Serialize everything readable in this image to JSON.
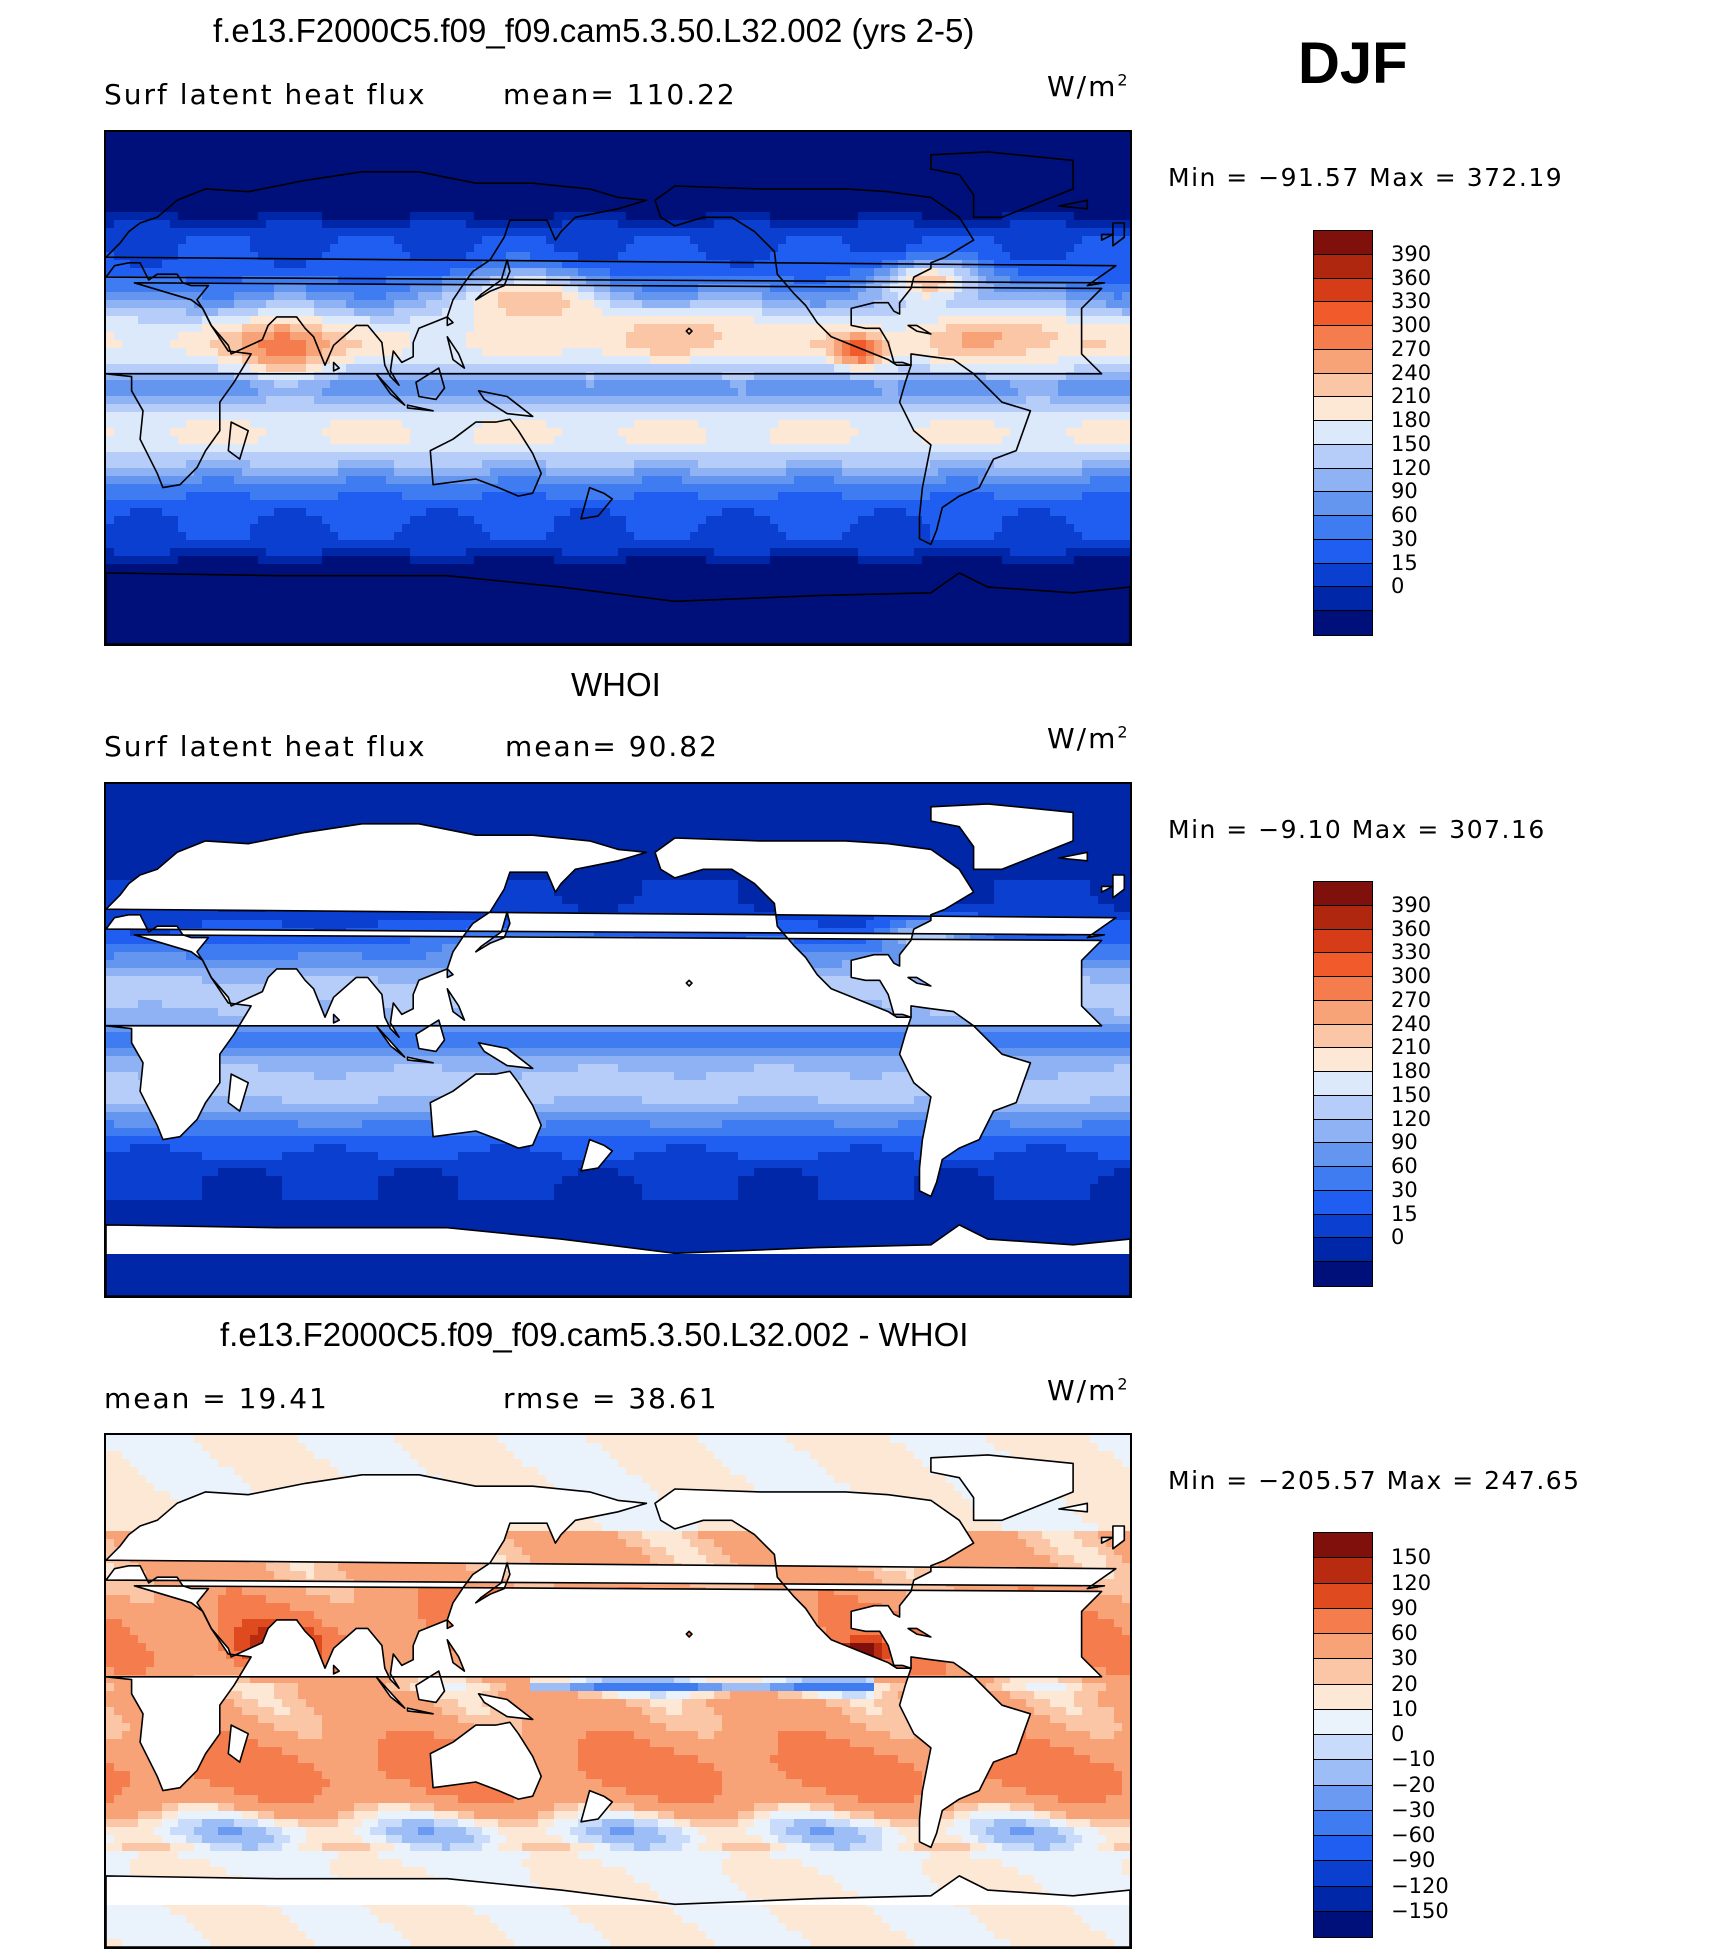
{
  "colors": {
    "seq": [
      "#00107a",
      "#0027a8",
      "#0a3fd0",
      "#1f5ef0",
      "#3f7cf2",
      "#6496f0",
      "#8fb2f5",
      "#b6cdf9",
      "#dce9fb",
      "#fde8d6",
      "#fbc6a6",
      "#f8a277",
      "#f57d4d",
      "#f15a2b",
      "#d63c17",
      "#b0270f",
      "#80100b"
    ],
    "div": [
      "#00107a",
      "#0027a8",
      "#0a3fd0",
      "#1f5ef0",
      "#3f7cf2",
      "#6a9af2",
      "#9dbdf6",
      "#c8dbfb",
      "#eaf2fc",
      "#fde8d6",
      "#fbc6a6",
      "#f8a277",
      "#f57d4d",
      "#e04a1f",
      "#b92b10",
      "#80100b"
    ]
  },
  "header": {
    "djf": "DJF"
  },
  "chart_data": [
    {
      "type": "heatmap",
      "title": "f.e13.F2000C5.f09_f09.cam5.3.50.L32.002 (yrs 2-5)",
      "left_label": "Surf  latent  heat  flux",
      "center_label": "mean=  110.22",
      "units": "W/m",
      "units_sup": "2",
      "minmax": "Min  =  −91.57  Max  =  372.19",
      "min": -91.57,
      "max": 372.19,
      "mean": 110.22,
      "colorbar_ticks": [
        "390",
        "360",
        "330",
        "300",
        "270",
        "240",
        "210",
        "180",
        "150",
        "120",
        "90",
        "60",
        "30",
        "15",
        "0"
      ],
      "colorbar_colors": "seq"
    },
    {
      "type": "heatmap",
      "title": "WHOI",
      "left_label": "Surf  latent  heat  flux",
      "center_label": "mean=   90.82",
      "units": "W/m",
      "units_sup": "2",
      "minmax": "Min  =   −9.10  Max  =  307.16",
      "min": -9.1,
      "max": 307.16,
      "mean": 90.82,
      "colorbar_ticks": [
        "390",
        "360",
        "330",
        "300",
        "270",
        "240",
        "210",
        "180",
        "150",
        "120",
        "90",
        "60",
        "30",
        "15",
        "0"
      ],
      "colorbar_colors": "seq"
    },
    {
      "type": "heatmap",
      "title": "f.e13.F2000C5.f09_f09.cam5.3.50.L32.002 - WHOI",
      "left_label": "mean  =    19.41",
      "center_label": "rmse  =    38.61",
      "units": "W/m",
      "units_sup": "2",
      "minmax": "Min  =  −205.57  Max  =  247.65",
      "min": -205.57,
      "max": 247.65,
      "mean": 19.41,
      "rmse": 38.61,
      "colorbar_ticks": [
        "150",
        "120",
        "90",
        "60",
        "30",
        "20",
        "10",
        "0",
        "−10",
        "−20",
        "−30",
        "−60",
        "−90",
        "−120",
        "−150"
      ],
      "colorbar_colors": "div"
    }
  ]
}
